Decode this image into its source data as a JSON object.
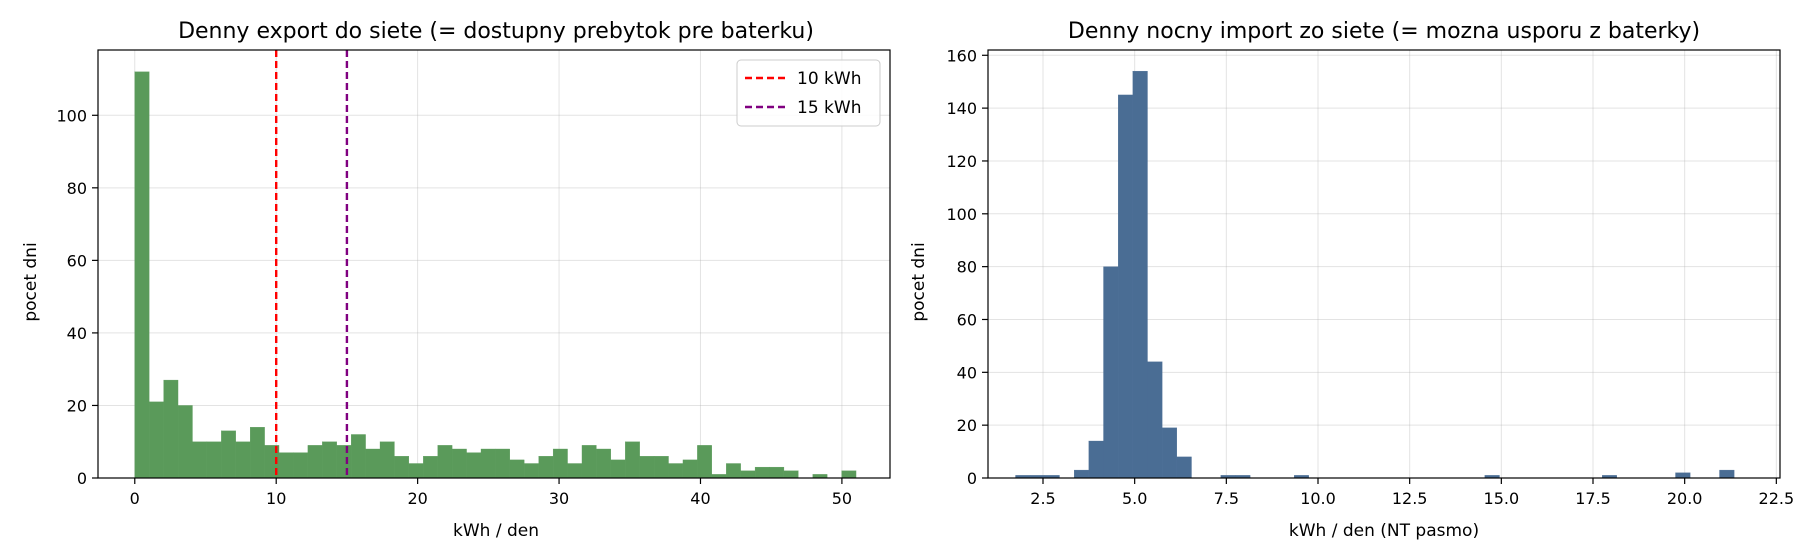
{
  "chart_data": [
    {
      "type": "bar",
      "title": "Denny export do siete (= dostupny prebytok pre baterku)",
      "xlabel": "kWh / den",
      "ylabel": "pocet dni",
      "xlim": [
        -2.6,
        53.4
      ],
      "ylim": [
        0,
        118
      ],
      "xticks": [
        0,
        10,
        20,
        30,
        40,
        50
      ],
      "xtick_labels": [
        "0",
        "10",
        "20",
        "30",
        "40",
        "50"
      ],
      "yticks": [
        0,
        20,
        40,
        60,
        80,
        100
      ],
      "ytick_labels": [
        "0",
        "20",
        "40",
        "60",
        "80",
        "100"
      ],
      "grid": true,
      "color": "#5a9a5a",
      "bin_start": 0,
      "bin_width": 1.02,
      "values": [
        112,
        21,
        27,
        20,
        10,
        10,
        13,
        10,
        14,
        9,
        7,
        7,
        9,
        10,
        9,
        12,
        8,
        10,
        6,
        4,
        6,
        9,
        8,
        7,
        8,
        8,
        5,
        4,
        6,
        8,
        4,
        9,
        8,
        5,
        10,
        6,
        6,
        4,
        5,
        9,
        1,
        4,
        2,
        3,
        3,
        2,
        0,
        1,
        0,
        2
      ],
      "vlines": [
        {
          "x": 10,
          "label": "10 kWh",
          "color": "#ff0000"
        },
        {
          "x": 15,
          "label": "15 kWh",
          "color": "#800080"
        }
      ],
      "legend": "top-right"
    },
    {
      "type": "bar",
      "title": "Denny nocny import zo siete (= mozna usporu z baterky)",
      "xlabel": "kWh / den (NT pasmo)",
      "ylabel": "pocet dni",
      "xlim": [
        1.0,
        22.6
      ],
      "ylim": [
        0,
        162
      ],
      "xticks": [
        2.5,
        5.0,
        7.5,
        10.0,
        12.5,
        15.0,
        17.5,
        20.0,
        22.5
      ],
      "xtick_labels": [
        "2.5",
        "5.0",
        "7.5",
        "10.0",
        "12.5",
        "15.0",
        "17.5",
        "20.0",
        "22.5"
      ],
      "yticks": [
        0,
        20,
        40,
        60,
        80,
        100,
        120,
        140,
        160
      ],
      "ytick_labels": [
        "0",
        "20",
        "40",
        "60",
        "80",
        "100",
        "120",
        "140",
        "160"
      ],
      "grid": true,
      "color": "#4a6d94",
      "bin_start": 1.75,
      "bin_width": 0.4,
      "values": [
        1,
        1,
        1,
        0,
        3,
        14,
        80,
        145,
        154,
        44,
        19,
        8,
        0,
        0,
        1,
        1,
        0,
        0,
        0,
        1,
        0,
        0,
        0,
        0,
        0,
        0,
        0,
        0,
        0,
        0,
        0,
        0,
        1,
        0,
        0,
        0,
        0,
        0,
        0,
        0,
        1,
        0,
        0,
        0,
        0,
        2,
        0,
        0,
        3
      ],
      "legend": "none"
    }
  ]
}
